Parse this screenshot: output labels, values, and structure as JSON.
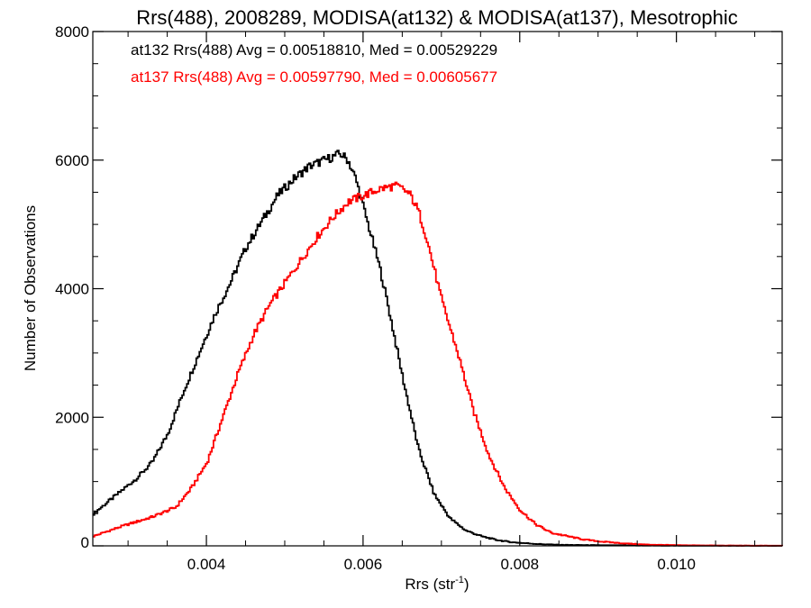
{
  "chart_data": {
    "type": "line",
    "step": true,
    "title": "Rrs(488), 2008289, MODISA(at132) & MODISA(at137), Mesotrophic",
    "xlabel": "Rrs (str",
    "xlabel_sup": "-1",
    "xlabel_suffix": ")",
    "ylabel": "Number of Observations",
    "xlim": [
      0.00255,
      0.01135
    ],
    "ylim": [
      0,
      8000
    ],
    "xticks": [
      0.004,
      0.006,
      0.008,
      0.01
    ],
    "xtick_labels": [
      "0.004",
      "0.006",
      "0.008",
      "0.010"
    ],
    "yticks": [
      0,
      2000,
      4000,
      6000,
      8000
    ],
    "ytick_labels": [
      "0",
      "2000",
      "4000",
      "6000",
      "8000"
    ],
    "grid": false,
    "legend_position": "top-left",
    "annotations": [
      {
        "text": "at132 Rrs(488) Avg = 0.00518810, Med = 0.00529229",
        "color": "#000000"
      },
      {
        "text": "at137 Rrs(488) Avg = 0.00597790, Med = 0.00605677",
        "color": "#ff0000"
      }
    ],
    "series": [
      {
        "color": "#000000",
        "x": [
          0.00255,
          0.0027,
          0.0029,
          0.0031,
          0.0033,
          0.0035,
          0.0037,
          0.0039,
          0.0041,
          0.0043,
          0.0045,
          0.0047,
          0.0049,
          0.0051,
          0.0053,
          0.0055,
          0.0057,
          0.0058,
          0.0059,
          0.006,
          0.0061,
          0.0062,
          0.0063,
          0.0065,
          0.0067,
          0.0069,
          0.0071,
          0.0073,
          0.0075,
          0.0077,
          0.0079,
          0.0082,
          0.0085,
          0.009,
          0.0095,
          0.01,
          0.0105,
          0.01135
        ],
        "y": [
          500,
          650,
          850,
          1050,
          1300,
          1750,
          2400,
          3000,
          3600,
          4100,
          4650,
          5050,
          5450,
          5700,
          5900,
          6000,
          6100,
          6000,
          5700,
          5250,
          4800,
          4350,
          3800,
          2600,
          1500,
          800,
          430,
          240,
          150,
          90,
          55,
          30,
          15,
          10,
          5,
          3,
          2,
          1
        ]
      },
      {
        "color": "#ff0000",
        "x": [
          0.00255,
          0.0029,
          0.0033,
          0.0036,
          0.0038,
          0.004,
          0.0042,
          0.0044,
          0.0046,
          0.0048,
          0.005,
          0.0052,
          0.0054,
          0.0056,
          0.0058,
          0.006,
          0.0062,
          0.0064,
          0.0065,
          0.0066,
          0.0067,
          0.0068,
          0.0069,
          0.007,
          0.0072,
          0.0074,
          0.0076,
          0.0078,
          0.008,
          0.0082,
          0.0084,
          0.0086,
          0.0088,
          0.009,
          0.0093,
          0.0096,
          0.01,
          0.0105,
          0.01135
        ],
        "y": [
          150,
          300,
          450,
          600,
          900,
          1300,
          2000,
          2700,
          3300,
          3750,
          4100,
          4450,
          4800,
          5100,
          5350,
          5450,
          5550,
          5600,
          5550,
          5450,
          5200,
          4800,
          4300,
          3800,
          3000,
          2100,
          1400,
          900,
          550,
          330,
          200,
          150,
          100,
          70,
          40,
          20,
          10,
          5,
          2
        ]
      }
    ]
  }
}
